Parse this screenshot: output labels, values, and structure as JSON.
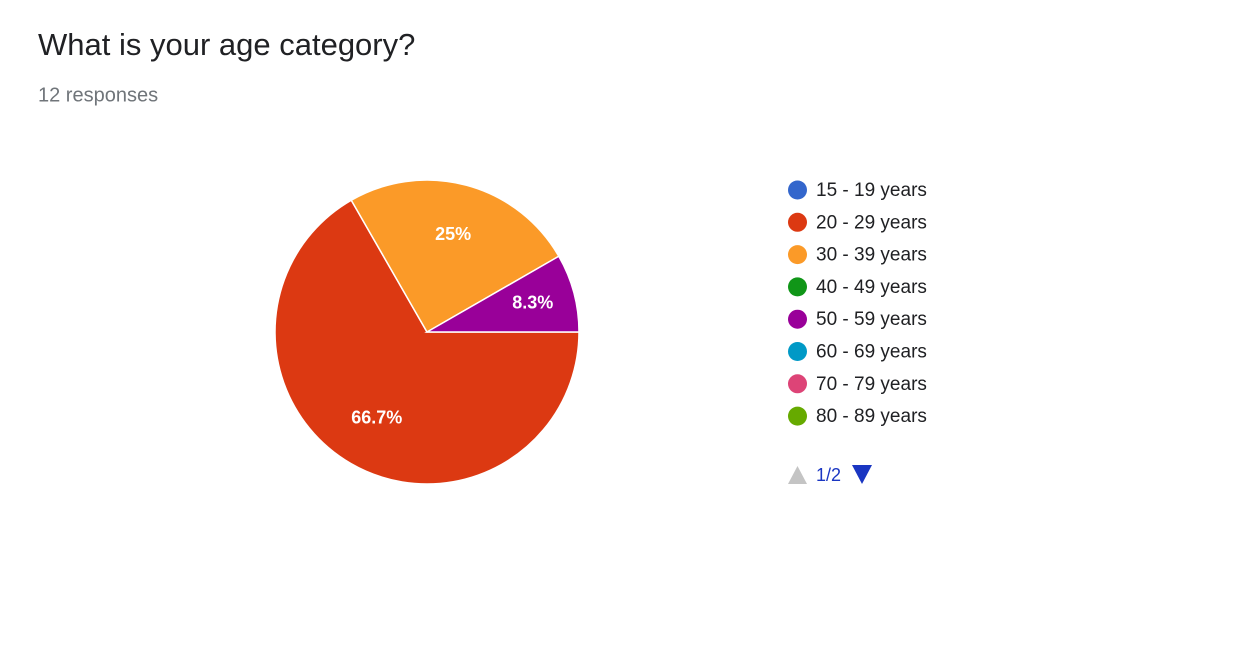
{
  "chart_data": {
    "type": "pie",
    "title": "What is your age category?",
    "subtitle": "12 responses",
    "categories": [
      "15 - 19 years",
      "20 - 29 years",
      "30 - 39 years",
      "40 - 49 years",
      "50 - 59 years",
      "60 - 69 years",
      "70 - 79 years",
      "80 - 89 years"
    ],
    "values": [
      0,
      66.7,
      25,
      0,
      8.3,
      0,
      0,
      0
    ],
    "value_labels": [
      null,
      "66.7%",
      "25%",
      null,
      "8.3%",
      null,
      null,
      null
    ],
    "colors": [
      "#3366cc",
      "#dc3912",
      "#fb9a28",
      "#109618",
      "#990099",
      "#0099c6",
      "#dd4477",
      "#66aa00"
    ],
    "legend_position": "right",
    "legend_page": "1/2"
  }
}
